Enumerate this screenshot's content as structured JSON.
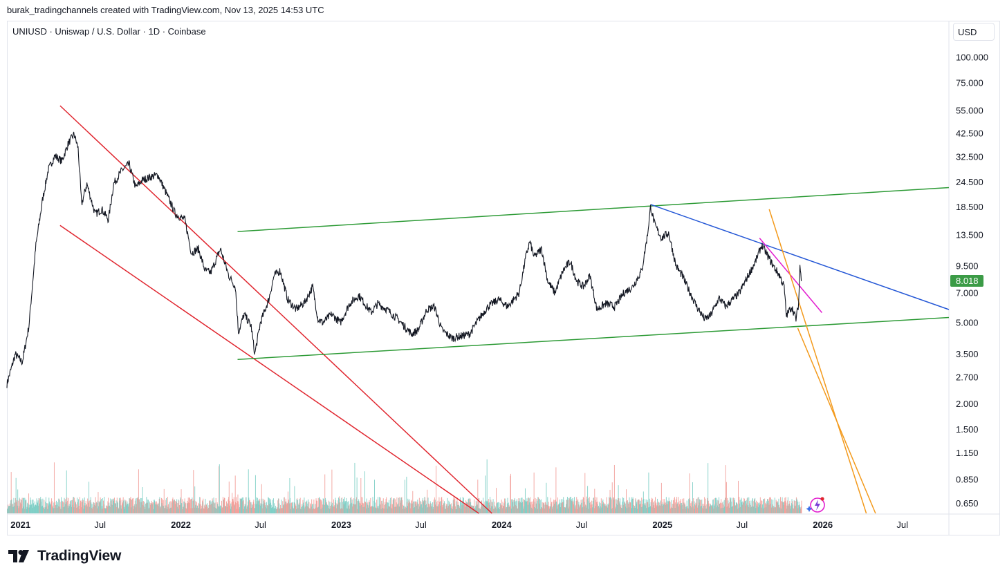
{
  "header": {
    "attribution": "burak_tradingchannels created with TradingView.com, Nov 13, 2025 14:53 UTC"
  },
  "chart": {
    "symbol_title": "UNIUSD · Uniswap / U.S. Dollar · 1D · Coinbase",
    "currency_label": "USD",
    "last_price_label": "8.018"
  },
  "footer": {
    "brand": "TradingView"
  },
  "colors": {
    "candle": "#131722",
    "red_channel": "#e0262f",
    "green_channel": "#2c9a35",
    "blue_trend": "#2457d6",
    "magenta_trend": "#e21ccf",
    "orange_channel": "#f39a1c",
    "last_price_badge": "#3b9b46",
    "volume_up": "#7fcfc6",
    "volume_down": "#f2a09b"
  },
  "chart_data": {
    "type": "line",
    "price_scale": "log",
    "x_axis": {
      "range": [
        "2020-12-01",
        "2026-10-15"
      ],
      "tick_labels": [
        {
          "label": "2021",
          "date": "2021-01-01"
        },
        {
          "label": "Jul",
          "date": "2021-07-01"
        },
        {
          "label": "2022",
          "date": "2022-01-01"
        },
        {
          "label": "Jul",
          "date": "2022-07-01"
        },
        {
          "label": "2023",
          "date": "2023-01-01"
        },
        {
          "label": "Jul",
          "date": "2023-07-01"
        },
        {
          "label": "2024",
          "date": "2024-01-01"
        },
        {
          "label": "Jul",
          "date": "2024-07-01"
        },
        {
          "label": "2025",
          "date": "2025-01-01"
        },
        {
          "label": "Jul",
          "date": "2025-07-01"
        },
        {
          "label": "2026",
          "date": "2026-01-01"
        },
        {
          "label": "Jul",
          "date": "2026-07-01"
        }
      ]
    },
    "y_axis": {
      "range": [
        0.58,
        118
      ],
      "tick_labels": [
        "100.000",
        "75.000",
        "55.000",
        "42.500",
        "32.500",
        "24.500",
        "18.500",
        "13.500",
        "9.500",
        "7.000",
        "5.000",
        "3.500",
        "2.700",
        "2.000",
        "1.500",
        "1.150",
        "0.850",
        "0.650"
      ]
    },
    "series": [
      {
        "kind": "price",
        "points": [
          [
            "2020-12-01",
            2.5
          ],
          [
            "2020-12-20",
            3.5
          ],
          [
            "2021-01-05",
            3.2
          ],
          [
            "2021-01-20",
            4.8
          ],
          [
            "2021-02-05",
            12.0
          ],
          [
            "2021-02-20",
            20.0
          ],
          [
            "2021-03-05",
            28.0
          ],
          [
            "2021-03-20",
            33.0
          ],
          [
            "2021-04-05",
            31.0
          ],
          [
            "2021-04-20",
            38.0
          ],
          [
            "2021-05-03",
            42.0
          ],
          [
            "2021-05-12",
            36.0
          ],
          [
            "2021-05-20",
            19.0
          ],
          [
            "2021-06-01",
            24.0
          ],
          [
            "2021-06-20",
            17.0
          ],
          [
            "2021-07-05",
            18.0
          ],
          [
            "2021-07-20",
            16.0
          ],
          [
            "2021-08-01",
            24.0
          ],
          [
            "2021-08-20",
            28.0
          ],
          [
            "2021-09-05",
            30.0
          ],
          [
            "2021-09-20",
            23.0
          ],
          [
            "2021-10-05",
            25.0
          ],
          [
            "2021-10-25",
            26.0
          ],
          [
            "2021-11-10",
            26.5
          ],
          [
            "2021-12-01",
            21.0
          ],
          [
            "2021-12-20",
            17.0
          ],
          [
            "2022-01-10",
            16.0
          ],
          [
            "2022-01-25",
            11.0
          ],
          [
            "2022-02-10",
            11.5
          ],
          [
            "2022-02-25",
            9.0
          ],
          [
            "2022-03-10",
            8.8
          ],
          [
            "2022-04-01",
            11.5
          ],
          [
            "2022-04-20",
            8.5
          ],
          [
            "2022-05-05",
            7.5
          ],
          [
            "2022-05-12",
            4.5
          ],
          [
            "2022-05-25",
            5.5
          ],
          [
            "2022-06-10",
            4.8
          ],
          [
            "2022-06-18",
            3.5
          ],
          [
            "2022-07-01",
            5.0
          ],
          [
            "2022-07-20",
            6.5
          ],
          [
            "2022-08-01",
            8.5
          ],
          [
            "2022-08-15",
            9.0
          ],
          [
            "2022-09-01",
            6.5
          ],
          [
            "2022-09-20",
            5.8
          ],
          [
            "2022-10-10",
            6.3
          ],
          [
            "2022-10-28",
            7.5
          ],
          [
            "2022-11-09",
            5.2
          ],
          [
            "2022-11-20",
            5.0
          ],
          [
            "2022-12-10",
            5.5
          ],
          [
            "2022-12-30",
            5.0
          ],
          [
            "2023-01-20",
            6.2
          ],
          [
            "2023-02-10",
            6.8
          ],
          [
            "2023-03-10",
            5.6
          ],
          [
            "2023-03-25",
            6.2
          ],
          [
            "2023-04-15",
            5.8
          ],
          [
            "2023-05-10",
            5.2
          ],
          [
            "2023-06-10",
            4.4
          ],
          [
            "2023-06-25",
            4.6
          ],
          [
            "2023-07-15",
            5.8
          ],
          [
            "2023-08-01",
            6.0
          ],
          [
            "2023-08-18",
            4.6
          ],
          [
            "2023-09-10",
            4.2
          ],
          [
            "2023-10-01",
            4.3
          ],
          [
            "2023-10-20",
            4.4
          ],
          [
            "2023-11-10",
            5.2
          ],
          [
            "2023-12-01",
            6.0
          ],
          [
            "2023-12-25",
            6.5
          ],
          [
            "2024-01-15",
            6.0
          ],
          [
            "2024-02-10",
            7.0
          ],
          [
            "2024-02-25",
            10.5
          ],
          [
            "2024-03-05",
            12.5
          ],
          [
            "2024-03-15",
            10.5
          ],
          [
            "2024-04-01",
            11.5
          ],
          [
            "2024-04-15",
            8.0
          ],
          [
            "2024-05-01",
            7.0
          ],
          [
            "2024-05-20",
            9.0
          ],
          [
            "2024-06-05",
            10.0
          ],
          [
            "2024-06-20",
            8.0
          ],
          [
            "2024-07-05",
            7.5
          ],
          [
            "2024-07-20",
            8.5
          ],
          [
            "2024-08-05",
            5.8
          ],
          [
            "2024-08-25",
            6.2
          ],
          [
            "2024-09-15",
            6.0
          ],
          [
            "2024-10-05",
            7.0
          ],
          [
            "2024-10-25",
            7.5
          ],
          [
            "2024-11-15",
            9.0
          ],
          [
            "2024-11-28",
            13.5
          ],
          [
            "2024-12-05",
            18.5
          ],
          [
            "2024-12-15",
            15.0
          ],
          [
            "2024-12-30",
            13.0
          ],
          [
            "2025-01-15",
            13.8
          ],
          [
            "2025-02-01",
            9.5
          ],
          [
            "2025-02-15",
            8.5
          ],
          [
            "2025-03-05",
            7.0
          ],
          [
            "2025-03-20",
            6.0
          ],
          [
            "2025-04-07",
            5.2
          ],
          [
            "2025-04-20",
            5.4
          ],
          [
            "2025-05-10",
            6.6
          ],
          [
            "2025-05-25",
            6.0
          ],
          [
            "2025-06-10",
            6.5
          ],
          [
            "2025-06-25",
            7.0
          ],
          [
            "2025-07-15",
            8.5
          ],
          [
            "2025-08-01",
            10.0
          ],
          [
            "2025-08-15",
            12.0
          ],
          [
            "2025-08-25",
            11.0
          ],
          [
            "2025-09-10",
            9.5
          ],
          [
            "2025-09-25",
            8.5
          ],
          [
            "2025-10-05",
            7.5
          ],
          [
            "2025-10-10",
            5.4
          ],
          [
            "2025-10-22",
            6.0
          ],
          [
            "2025-11-01",
            5.2
          ],
          [
            "2025-11-07",
            6.2
          ],
          [
            "2025-11-10",
            9.6
          ],
          [
            "2025-11-13",
            8.0
          ]
        ]
      },
      {
        "kind": "trendline",
        "color": "red_channel",
        "points": [
          [
            "2021-04-01",
            58.0
          ],
          [
            "2023-12-10",
            0.58
          ]
        ]
      },
      {
        "kind": "trendline",
        "color": "red_channel",
        "points": [
          [
            "2021-04-01",
            15.0
          ],
          [
            "2023-11-10",
            0.58
          ]
        ]
      },
      {
        "kind": "trendline",
        "color": "green_channel",
        "points": [
          [
            "2022-05-10",
            14.0
          ],
          [
            "2026-10-15",
            23.0
          ]
        ]
      },
      {
        "kind": "trendline",
        "color": "green_channel",
        "points": [
          [
            "2022-05-10",
            3.3
          ],
          [
            "2026-10-15",
            5.3
          ]
        ]
      },
      {
        "kind": "trendline",
        "color": "blue_trend",
        "points": [
          [
            "2024-12-05",
            19.0
          ],
          [
            "2026-10-15",
            5.8
          ]
        ]
      },
      {
        "kind": "trendline",
        "color": "magenta_trend",
        "points": [
          [
            "2025-08-10",
            13.0
          ],
          [
            "2025-12-30",
            5.6
          ]
        ]
      },
      {
        "kind": "trendline",
        "color": "orange_channel",
        "points": [
          [
            "2025-09-01",
            18.0
          ],
          [
            "2026-04-10",
            0.58
          ]
        ]
      },
      {
        "kind": "trendline",
        "color": "orange_channel",
        "points": [
          [
            "2025-11-05",
            4.7
          ],
          [
            "2026-05-01",
            0.58
          ]
        ]
      }
    ],
    "last_price": 8.018
  }
}
